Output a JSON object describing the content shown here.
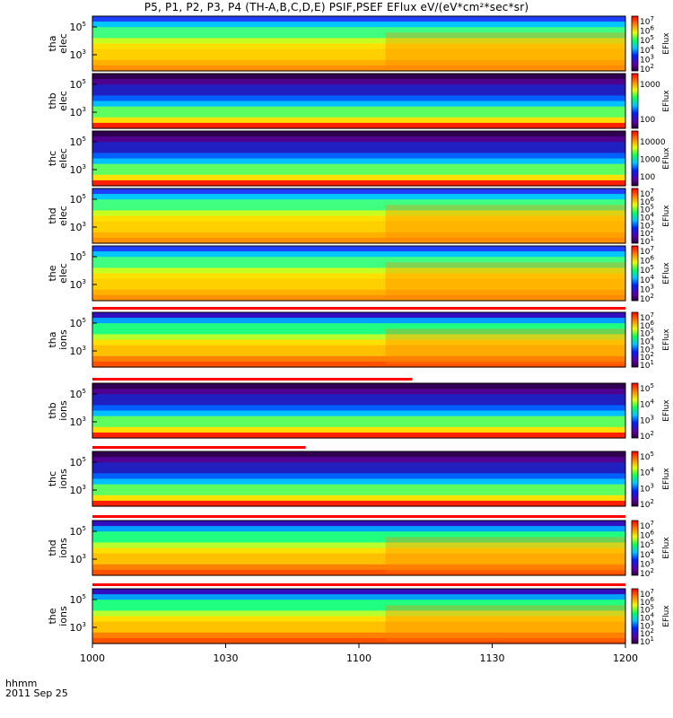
{
  "title": "P5, P1, P2, P3, P4 (TH-A,B,C,D,E) PSIF,PSEF EFlux eV/(eV*cm²*sec*sr)",
  "x_axis": {
    "ticks": [
      "1000",
      "1030",
      "1100",
      "1130",
      "1200"
    ],
    "unit_label": "hhmm",
    "date_label": "2011 Sep 25"
  },
  "colorbar_title": "EFlux",
  "panels": [
    {
      "label_top": "tha",
      "label_bottom": "elec",
      "y_exps": [
        5,
        3
      ],
      "cb_exps": [
        2,
        3,
        4,
        5,
        6,
        7
      ],
      "cb_style": "exp"
    },
    {
      "label_top": "thb",
      "label_bottom": "elec",
      "y_exps": [
        5,
        3
      ],
      "cb_values": [
        "1000",
        "100"
      ],
      "cb_style": "plain"
    },
    {
      "label_top": "thc",
      "label_bottom": "elec",
      "y_exps": [
        5,
        3
      ],
      "cb_values": [
        "10000",
        "1000",
        "100"
      ],
      "cb_style": "plain"
    },
    {
      "label_top": "thd",
      "label_bottom": "elec",
      "y_exps": [
        5,
        3
      ],
      "cb_exps": [
        1,
        2,
        3,
        4,
        5,
        6,
        7
      ],
      "cb_style": "exp"
    },
    {
      "label_top": "the",
      "label_bottom": "elec",
      "y_exps": [
        5,
        3
      ],
      "cb_exps": [
        2,
        3,
        4,
        5,
        6,
        7
      ],
      "cb_style": "exp"
    },
    {
      "label_top": "tha",
      "label_bottom": "ions",
      "y_exps": [
        5,
        3
      ],
      "cb_exps": [
        1,
        2,
        3,
        4,
        5,
        6,
        7
      ],
      "cb_style": "exp",
      "bar": "red-full"
    },
    {
      "label_top": "thb",
      "label_bottom": "ions",
      "y_exps": [
        5,
        3
      ],
      "cb_exps": [
        2,
        3,
        4,
        5
      ],
      "cb_style": "exp",
      "bar": "red-partial"
    },
    {
      "label_top": "thc",
      "label_bottom": "ions",
      "y_exps": [
        5,
        3
      ],
      "cb_exps": [
        2,
        3,
        4,
        5
      ],
      "cb_style": "exp",
      "bar": "red-partial"
    },
    {
      "label_top": "thd",
      "label_bottom": "ions",
      "y_exps": [
        5,
        3
      ],
      "cb_exps": [
        2,
        3,
        4,
        5,
        6,
        7
      ],
      "cb_style": "exp",
      "bar": "red-full"
    },
    {
      "label_top": "the",
      "label_bottom": "ions",
      "y_exps": [
        5,
        3
      ],
      "cb_exps": [
        1,
        2,
        3,
        4,
        5,
        6,
        7
      ],
      "cb_style": "exp",
      "bar": "red-full"
    }
  ],
  "chart_data": {
    "type": "heatmap",
    "title": "P5, P1, P2, P3, P4 (TH-A,B,C,D,E) PSIF,PSEF EFlux eV/(eV*cm²*sec*sr)",
    "xlabel": "hhmm",
    "date": "2011 Sep 25",
    "x_ticks": [
      "1000",
      "1030",
      "1100",
      "1130",
      "1200"
    ],
    "y_ticks": [
      "10^5",
      "10^3"
    ],
    "colorbar_label": "EFlux",
    "colormap": "rainbow (purple-blue-cyan-green-yellow-red)",
    "series": [
      {
        "name": "tha elec",
        "colorbar_range": [
          "10^2",
          "10^7"
        ]
      },
      {
        "name": "thb elec",
        "colorbar_ticks": [
          "1000",
          "100"
        ]
      },
      {
        "name": "thc elec",
        "colorbar_ticks": [
          "10000",
          "1000",
          "100"
        ]
      },
      {
        "name": "thd elec",
        "colorbar_range": [
          "10^1",
          "10^7"
        ]
      },
      {
        "name": "the elec",
        "colorbar_range": [
          "10^2",
          "10^7"
        ]
      },
      {
        "name": "tha ions",
        "colorbar_range": [
          "10^1",
          "10^7"
        ]
      },
      {
        "name": "thb ions",
        "colorbar_range": [
          "10^2",
          "10^5"
        ]
      },
      {
        "name": "thc ions",
        "colorbar_range": [
          "10^2",
          "10^5"
        ]
      },
      {
        "name": "thd ions",
        "colorbar_range": [
          "10^2",
          "10^7"
        ]
      },
      {
        "name": "the ions",
        "colorbar_range": [
          "10^1",
          "10^7"
        ]
      }
    ]
  }
}
